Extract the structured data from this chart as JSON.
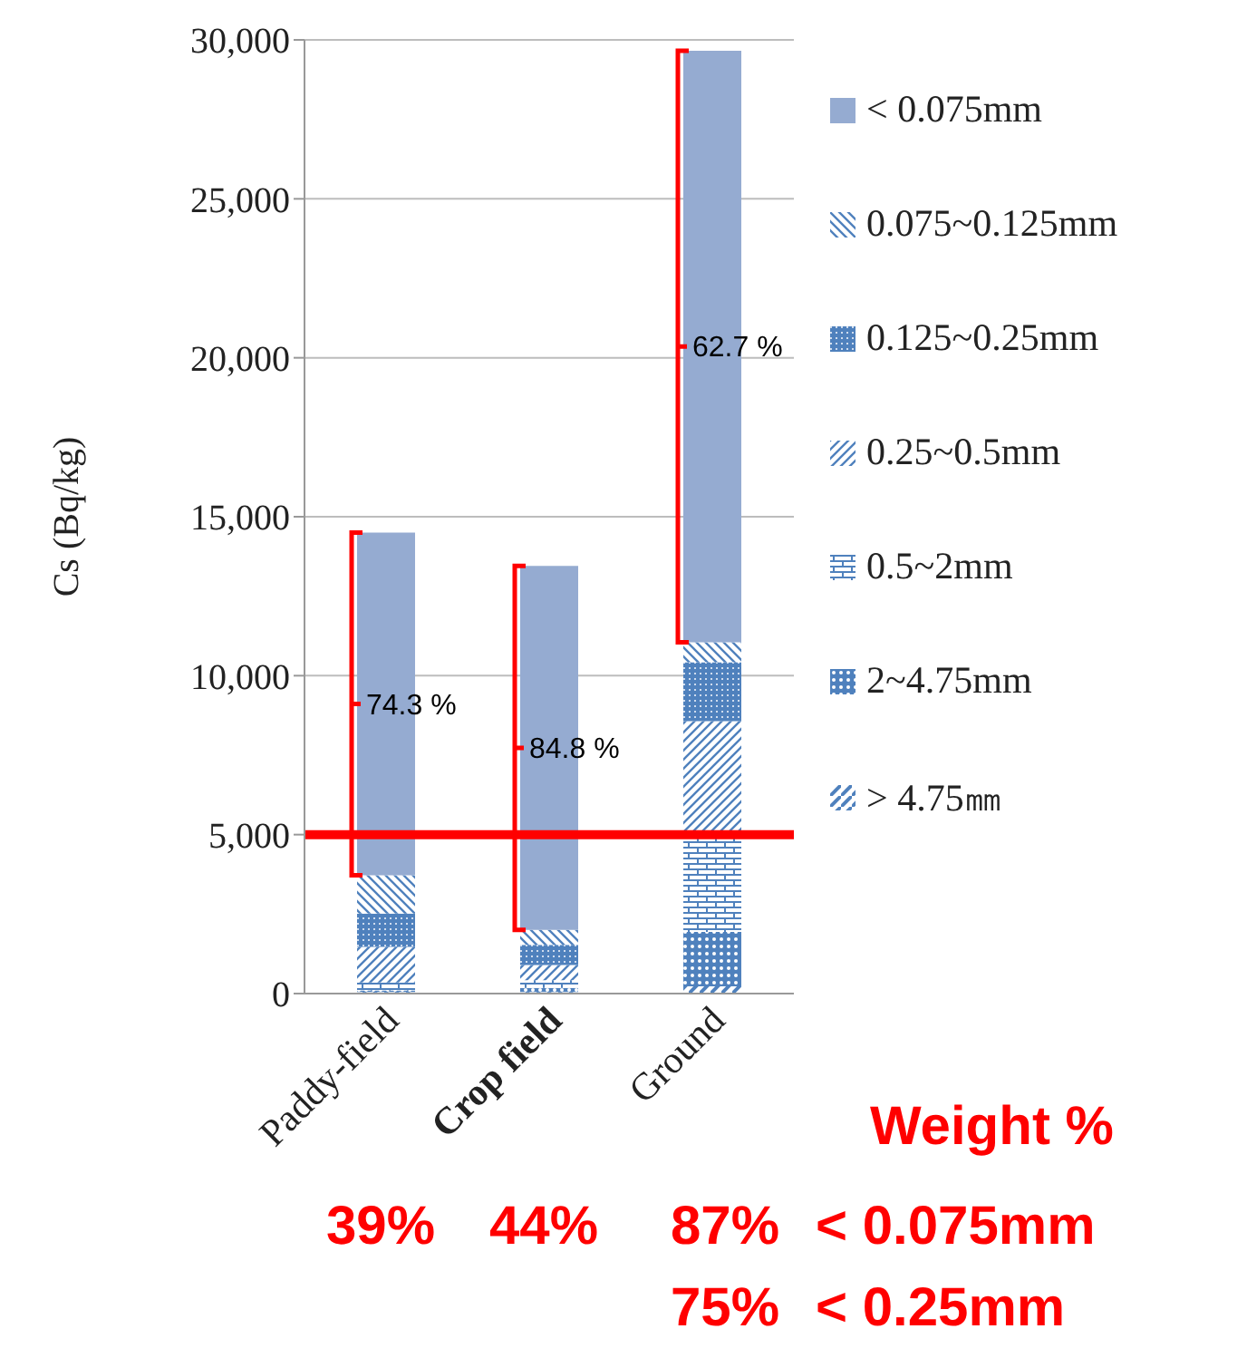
{
  "chart_data": {
    "type": "bar",
    "stacked": true,
    "ylabel": "Cs (Bq/kg)",
    "categories": [
      "Paddy-field",
      "Crop field",
      "Ground"
    ],
    "series": [
      {
        "name": "> 4.75㎜",
        "color": "#4f81bd",
        "values": [
          50,
          50,
          230
        ]
      },
      {
        "name": "2~4.75mm",
        "color": "#4f81bd",
        "values": [
          50,
          130,
          1710
        ]
      },
      {
        "name": "0.5~2mm",
        "color": "#4f81bd",
        "values": [
          250,
          240,
          3110
        ]
      },
      {
        "name": "0.25~0.5mm",
        "color": "#4f81bd",
        "values": [
          1120,
          480,
          3520
        ]
      },
      {
        "name": "0.125~0.25mm",
        "color": "#4f81bd",
        "values": [
          1050,
          630,
          1850
        ]
      },
      {
        "name": "0.075~0.125mm",
        "color": "#4f81bd",
        "values": [
          1200,
          470,
          630
        ]
      },
      {
        "name": "< 0.075mm",
        "color": "#95abd1",
        "values": [
          10780,
          11450,
          18610
        ]
      }
    ],
    "ylim": [
      0,
      30000
    ],
    "yticks": [
      {
        "value": 0,
        "label": "0"
      },
      {
        "value": 5000,
        "label": "5,000"
      },
      {
        "value": 10000,
        "label": "10,000"
      },
      {
        "value": 15000,
        "label": "15,000"
      },
      {
        "value": 20000,
        "label": "20,000"
      },
      {
        "value": 25000,
        "label": "25,000"
      },
      {
        "value": 30000,
        "label": "30,000"
      }
    ],
    "grid": "y",
    "legend": "right",
    "ref_lines": [
      {
        "axis": "y",
        "value": 5000,
        "color": "#ff0000"
      }
    ],
    "annotations": [
      "74.3 %",
      "84.8 %",
      "62.7 %",
      "Weight %",
      "39%",
      "44%",
      "87%",
      "< 0.075mm",
      "75%",
      "< 0.25mm"
    ]
  }
}
